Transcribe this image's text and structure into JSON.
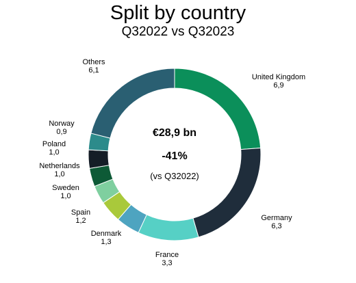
{
  "chart_data": {
    "type": "pie",
    "title": "Split by country",
    "subtitle": "Q32022 vs Q32023",
    "center": {
      "total": "€28,9 bn",
      "change": "-41%",
      "note": "(vs Q32022)"
    },
    "slices": [
      {
        "name": "United Kingdom",
        "value": 6.9,
        "label": "6,9",
        "color": "#0b8f5a"
      },
      {
        "name": "Germany",
        "value": 6.3,
        "label": "6,3",
        "color": "#1f2d3b"
      },
      {
        "name": "France",
        "value": 3.3,
        "label": "3,3",
        "color": "#56d0c5"
      },
      {
        "name": "Denmark",
        "value": 1.3,
        "label": "1,3",
        "color": "#4ea4c0"
      },
      {
        "name": "Spain",
        "value": 1.2,
        "label": "1,2",
        "color": "#a9c93b"
      },
      {
        "name": "Sweden",
        "value": 1.0,
        "label": "1,0",
        "color": "#7fcf9f"
      },
      {
        "name": "Netherlands",
        "value": 1.0,
        "label": "1,0",
        "color": "#0d5a36"
      },
      {
        "name": "Poland",
        "value": 1.0,
        "label": "1,0",
        "color": "#141d26"
      },
      {
        "name": "Norway",
        "value": 0.9,
        "label": "0,9",
        "color": "#2c8b8b"
      },
      {
        "name": "Others",
        "value": 6.1,
        "label": "6,1",
        "color": "#2a5f72"
      }
    ]
  }
}
